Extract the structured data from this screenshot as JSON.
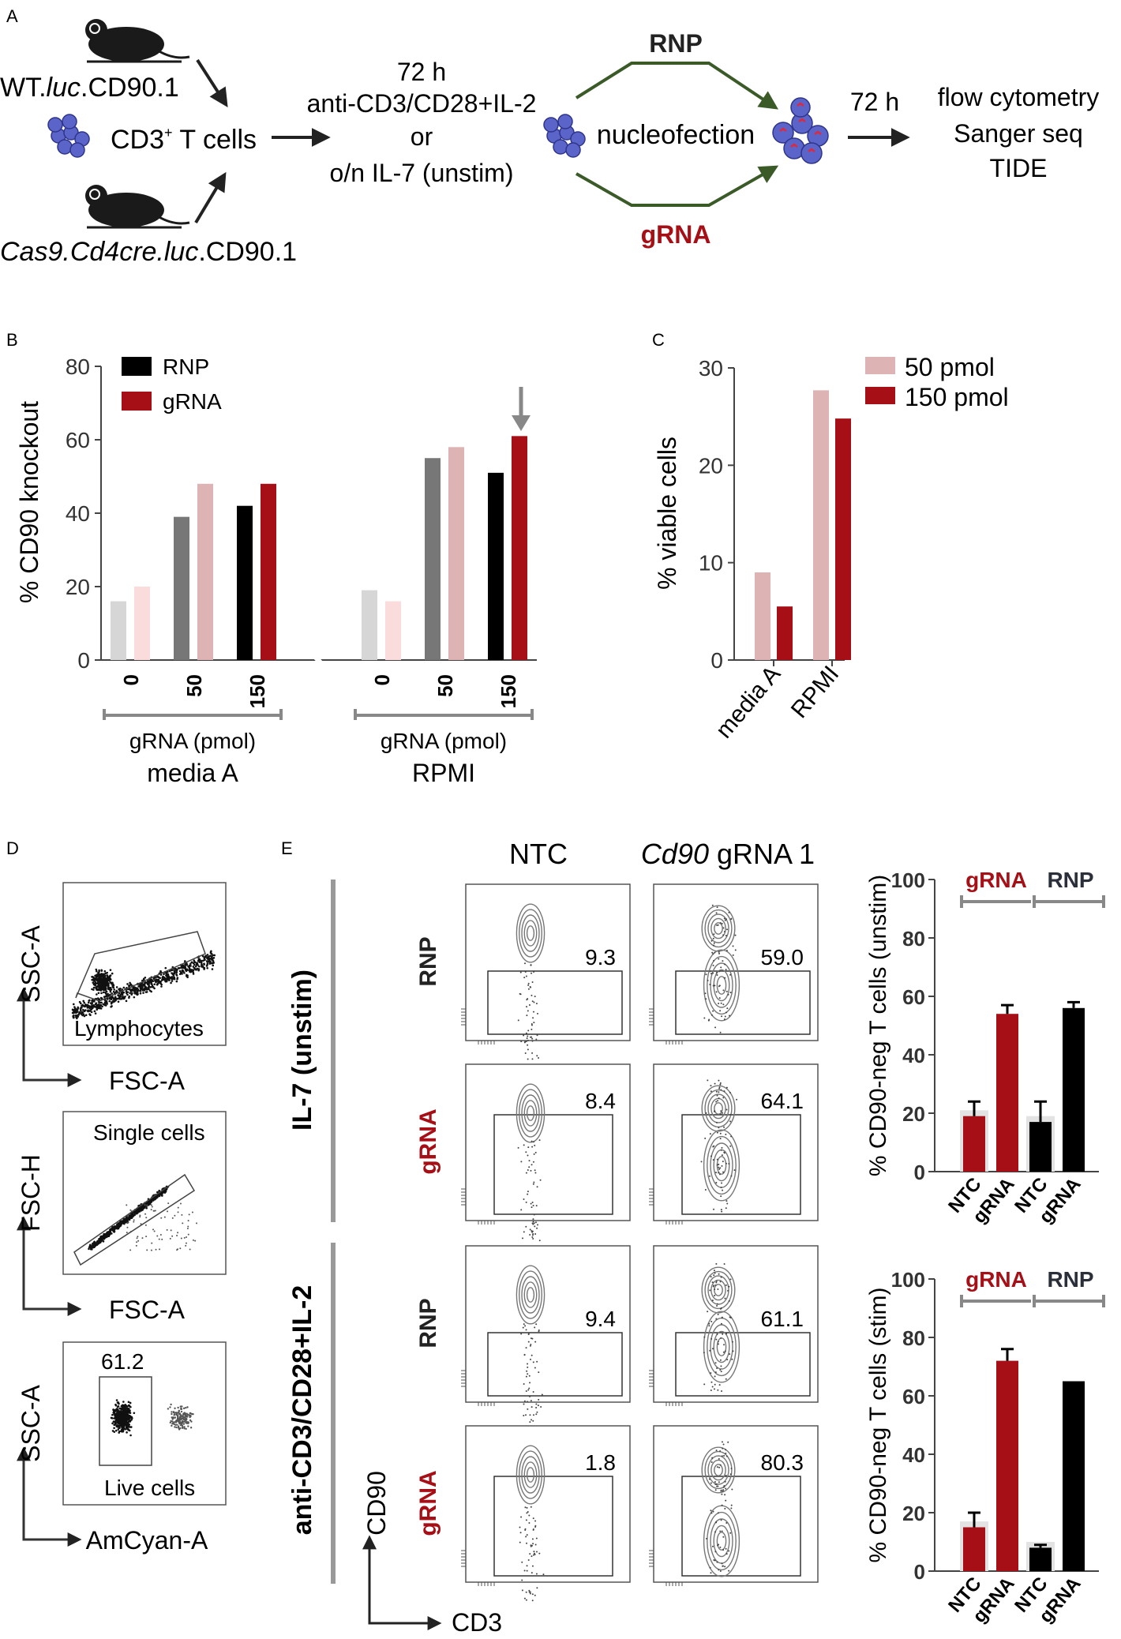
{
  "panel_labels": {
    "a": "A",
    "b": "B",
    "c": "C",
    "d": "D",
    "e": "E"
  },
  "panel_a": {
    "mouse1_label": "WT.luc.CD90.1",
    "mouse2_label": "Cas9.Cd4cre.luc.CD90.1",
    "cells_label": "CD3+ T cells",
    "cond_time": "72 h",
    "cond_stim": "anti-CD3/CD28+IL-2",
    "cond_or": "or",
    "cond_unstim": "o/n IL-7 (unstim)",
    "rnp": "RNP",
    "nucleofection": "nucleofection",
    "grna": "gRNA",
    "time2": "72 h",
    "readout1": "flow cytometry",
    "readout2": "Sanger seq",
    "readout3": "TIDE"
  },
  "panel_d": {
    "plot1_y": "SSC-A",
    "plot1_x": "FSC-A",
    "plot1_gate": "Lymphocytes",
    "plot2_y": "FSC-H",
    "plot2_x": "FSC-A",
    "plot2_gate": "Single cells",
    "plot3_y": "SSC-A",
    "plot3_x": "AmCyan-A",
    "plot3_gate": "Live cells",
    "plot3_value": "61.2"
  },
  "panel_e": {
    "col_ntc": "NTC",
    "col_cd90_italic": "Cd90",
    "col_cd90_rest": " gRNA 1",
    "cond_il7": "IL-7 (unstim)",
    "cond_stim": "anti-CD3/CD28+IL-2",
    "row_labels": [
      "RNP",
      "gRNA",
      "RNP",
      "gRNA"
    ],
    "ntc_values": [
      "9.3",
      "8.4",
      "9.4",
      "1.8"
    ],
    "cd90_values": [
      "59.0",
      "64.1",
      "61.1",
      "80.3"
    ],
    "axis_y": "CD90",
    "axis_x": "CD3"
  },
  "chart_data": [
    {
      "id": "B",
      "type": "bar",
      "ylabel": "% CD90 knockout",
      "ylim": [
        0,
        80
      ],
      "yticks": [
        0,
        20,
        40,
        60,
        80
      ],
      "legend": [
        {
          "name": "RNP",
          "color": "#000000"
        },
        {
          "name": "gRNA",
          "color": "#a50f15"
        }
      ],
      "group_xlabel": "gRNA (pmol)",
      "groups": [
        {
          "name": "media A",
          "ticks": [
            "0",
            "50",
            "150"
          ],
          "bars": [
            {
              "value": 16,
              "color": "#d6d6d6"
            },
            {
              "value": 20,
              "color": "#fadcdc"
            },
            {
              "value": 39,
              "color": "#777777"
            },
            {
              "value": 48,
              "color": "#ddb3b3"
            },
            {
              "value": 42,
              "color": "#000000"
            },
            {
              "value": 48,
              "color": "#a50f15"
            }
          ]
        },
        {
          "name": "RPMI",
          "ticks": [
            "0",
            "50",
            "150"
          ],
          "bars": [
            {
              "value": 19,
              "color": "#d6d6d6"
            },
            {
              "value": 16,
              "color": "#fadcdc"
            },
            {
              "value": 55,
              "color": "#777777"
            },
            {
              "value": 58,
              "color": "#ddb3b3"
            },
            {
              "value": 51,
              "color": "#000000"
            },
            {
              "value": 61,
              "color": "#a50f15"
            }
          ]
        }
      ],
      "annotation": "arrow above RPMI 150 pmol gRNA bar"
    },
    {
      "id": "C",
      "type": "bar",
      "ylabel": "% viable cells",
      "ylim": [
        0,
        30
      ],
      "yticks": [
        0,
        10,
        20,
        30
      ],
      "categories": [
        "media A",
        "RPMI"
      ],
      "series": [
        {
          "name": "50 pmol",
          "color": "#ddb3b3",
          "values": [
            9,
            27.7
          ]
        },
        {
          "name": "150 pmol",
          "color": "#a50f15",
          "values": [
            5.5,
            24.8
          ]
        }
      ]
    },
    {
      "id": "E-unstim",
      "type": "bar",
      "ylabel": "% CD90-neg T cells (unstim)",
      "ylim": [
        0,
        100
      ],
      "yticks": [
        0,
        20,
        40,
        60,
        80,
        100
      ],
      "group_labels": [
        "gRNA",
        "RNP"
      ],
      "categories": [
        "NTC",
        "gRNA",
        "NTC",
        "gRNA"
      ],
      "values": [
        19,
        54,
        17,
        56
      ],
      "errors": [
        5,
        3,
        7,
        2
      ],
      "colors": [
        "#a50f15",
        "#a50f15",
        "#000000",
        "#000000"
      ]
    },
    {
      "id": "E-stim",
      "type": "bar",
      "ylabel": "% CD90-neg T cells (stim)",
      "ylim": [
        0,
        100
      ],
      "yticks": [
        0,
        20,
        40,
        60,
        80,
        100
      ],
      "group_labels": [
        "gRNA",
        "RNP"
      ],
      "categories": [
        "NTC",
        "gRNA",
        "NTC",
        "gRNA"
      ],
      "values": [
        15,
        72,
        8,
        65
      ],
      "errors": [
        5,
        4,
        1,
        0
      ],
      "colors": [
        "#a50f15",
        "#a50f15",
        "#000000",
        "#000000"
      ]
    }
  ]
}
